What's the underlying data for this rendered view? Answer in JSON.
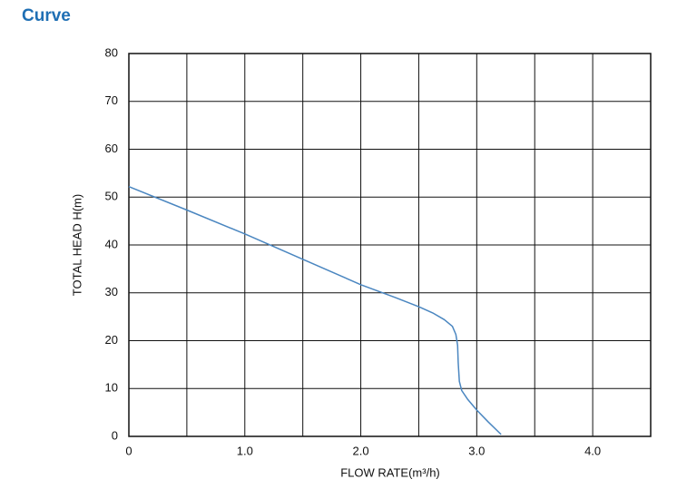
{
  "chart_data": {
    "type": "line",
    "title": "Curve",
    "x_label": "FLOW RATE(m³/h)",
    "y_label": "TOTAL HEAD H(m)",
    "x": [
      0,
      0.5,
      1.0,
      1.5,
      2.0,
      2.3,
      2.5,
      2.62,
      2.72,
      2.79,
      2.82,
      2.835,
      2.84,
      2.85,
      2.87,
      2.92,
      3.0,
      3.1,
      3.21
    ],
    "series": [
      {
        "name": "H",
        "color": "#4a86c0",
        "values": [
          52.2,
          47.3,
          42.3,
          37.0,
          31.7,
          29.0,
          27.1,
          25.8,
          24.4,
          23.0,
          21.3,
          19.0,
          15.5,
          11.5,
          9.6,
          7.8,
          5.5,
          3.0,
          0.4
        ]
      }
    ],
    "xlim": [
      0,
      4.5
    ],
    "ylim": [
      0,
      80
    ],
    "xticks": [
      0,
      {
        "value": 1,
        "label": "1.0"
      },
      {
        "value": 2,
        "label": "2.0"
      },
      {
        "value": 3,
        "label": "3.0"
      },
      {
        "value": 4,
        "label": "4.0"
      }
    ],
    "yticks": [
      0,
      10,
      20,
      30,
      40,
      50,
      60,
      70,
      80
    ],
    "grid": true
  }
}
